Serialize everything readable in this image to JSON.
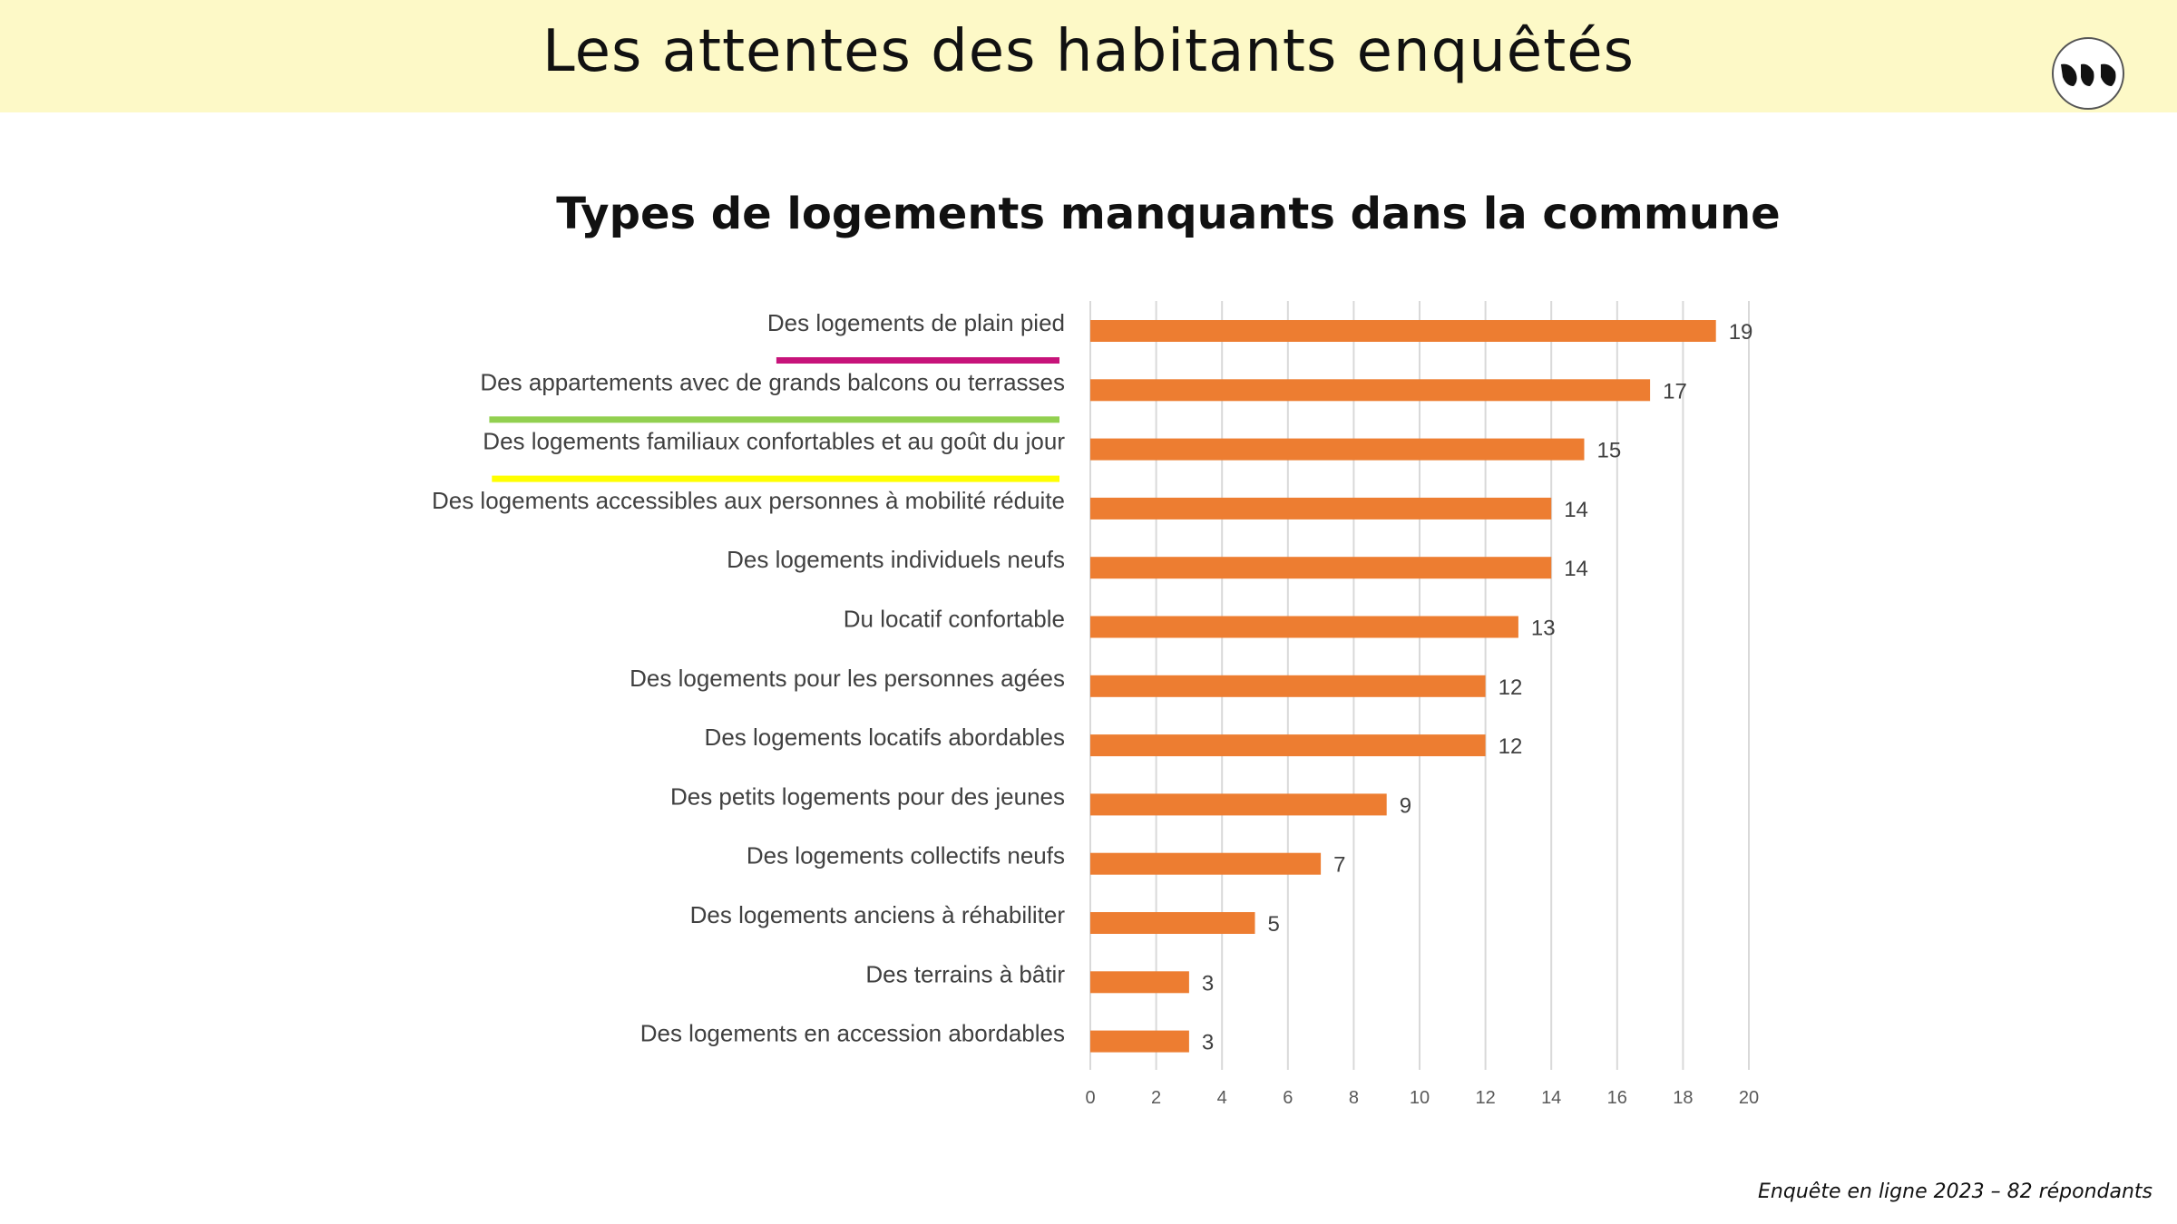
{
  "header": {
    "title": "Les attentes des habitants enquêtés"
  },
  "footer": {
    "note": "Enquête en ligne  2023 – 82 répondants"
  },
  "colors": {
    "bar": "#ed7d31",
    "banner": "#fdf9c7",
    "grid": "#d9d9d9",
    "label": "#404040",
    "underline_magenta": "#c7137a",
    "underline_green": "#92d050",
    "underline_yellow": "#ffff00"
  },
  "chart_data": {
    "type": "bar",
    "orientation": "horizontal",
    "title": "Types de logements manquants dans la commune",
    "xlabel": "",
    "ylabel": "",
    "xlim": [
      0,
      20
    ],
    "xticks": [
      "0",
      "2",
      "4",
      "6",
      "8",
      "10",
      "12",
      "14",
      "16",
      "18",
      "20"
    ],
    "grid": true,
    "categories": [
      "Des logements de plain pied",
      "Des appartements avec de grands balcons ou terrasses",
      "Des logements familiaux confortables et au goût du jour",
      "Des logements accessibles aux personnes à mobilité réduite",
      "Des logements individuels neufs",
      "Du locatif confortable",
      "Des logements pour les personnes agées",
      "Des logements locatifs abordables",
      "Des petits logements pour des jeunes",
      "Des logements collectifs neufs",
      "Des logements anciens à réhabiliter",
      "Des terrains à bâtir",
      "Des logements en accession abordables"
    ],
    "values": [
      19,
      17,
      15,
      14,
      14,
      13,
      12,
      12,
      9,
      7,
      5,
      3,
      3
    ],
    "highlight_underlines": [
      {
        "category": "Des logements de plain pied",
        "color": "#c7137a"
      },
      {
        "category": "Des appartements avec de grands balcons ou terrasses",
        "color": "#92d050"
      },
      {
        "category": "Des logements familiaux confortables et au goût du jour",
        "color": "#ffff00"
      }
    ]
  }
}
